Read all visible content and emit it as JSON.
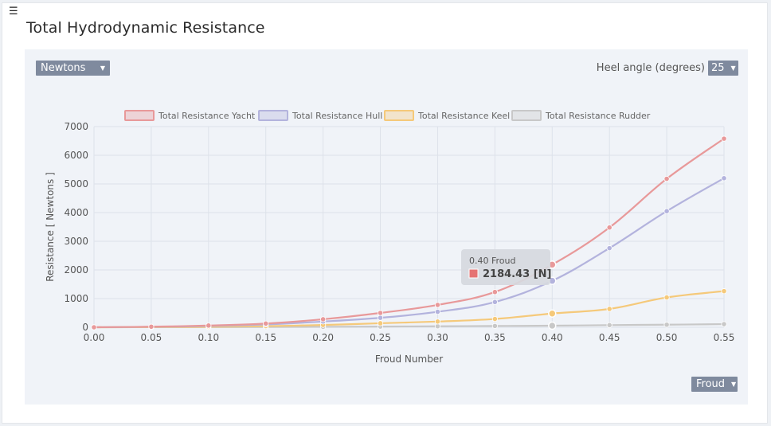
{
  "header": {
    "menu_icon": "hamburger-icon",
    "title": "Total Hydrodynamic Resistance"
  },
  "controls": {
    "units_value": "Newtons",
    "heel_label": "Heel angle (degrees)",
    "heel_value": "25",
    "xaxis_value": "Froud"
  },
  "tooltip": {
    "title": "0.40 Froud",
    "value": "2184.43 [N]",
    "color": "#e57373"
  },
  "chart_data": {
    "type": "line",
    "xlabel": "Froud Number",
    "ylabel": "Resistance [ Newtons ]",
    "xlim": [
      0,
      0.55
    ],
    "ylim": [
      0,
      7000
    ],
    "grid": true,
    "legend_position": "top",
    "x": [
      0.0,
      0.05,
      0.1,
      0.15,
      0.2,
      0.25,
      0.3,
      0.35,
      0.4,
      0.45,
      0.5,
      0.55
    ],
    "x_tick_labels": [
      "0.00",
      "0.05",
      "0.10",
      "0.15",
      "0.20",
      "0.25",
      "0.30",
      "0.35",
      "0.40",
      "0.45",
      "0.50",
      "0.55"
    ],
    "y_ticks": [
      0,
      1000,
      2000,
      3000,
      4000,
      5000,
      6000,
      7000
    ],
    "y_tick_labels": [
      "0",
      "1000",
      "2000",
      "3000",
      "4000",
      "5000",
      "6000",
      "7000"
    ],
    "series": [
      {
        "name": "Total Resistance Yacht",
        "color": "#e8999a",
        "values": [
          0,
          20,
          60,
          130,
          280,
          500,
          780,
          1230,
          2184.43,
          3480,
          5180,
          6580
        ]
      },
      {
        "name": "Total Resistance Hull",
        "color": "#b3b3dd",
        "values": [
          0,
          15,
          45,
          100,
          200,
          330,
          540,
          880,
          1620,
          2760,
          4050,
          5200
        ]
      },
      {
        "name": "Total Resistance Keel",
        "color": "#f5c97a",
        "values": [
          0,
          5,
          15,
          40,
          80,
          140,
          200,
          290,
          480,
          640,
          1040,
          1260
        ]
      },
      {
        "name": "Total Resistance Rudder",
        "color": "#c8c8c8",
        "values": [
          0,
          2,
          5,
          10,
          15,
          25,
          35,
          45,
          55,
          75,
          90,
          110
        ]
      }
    ]
  }
}
